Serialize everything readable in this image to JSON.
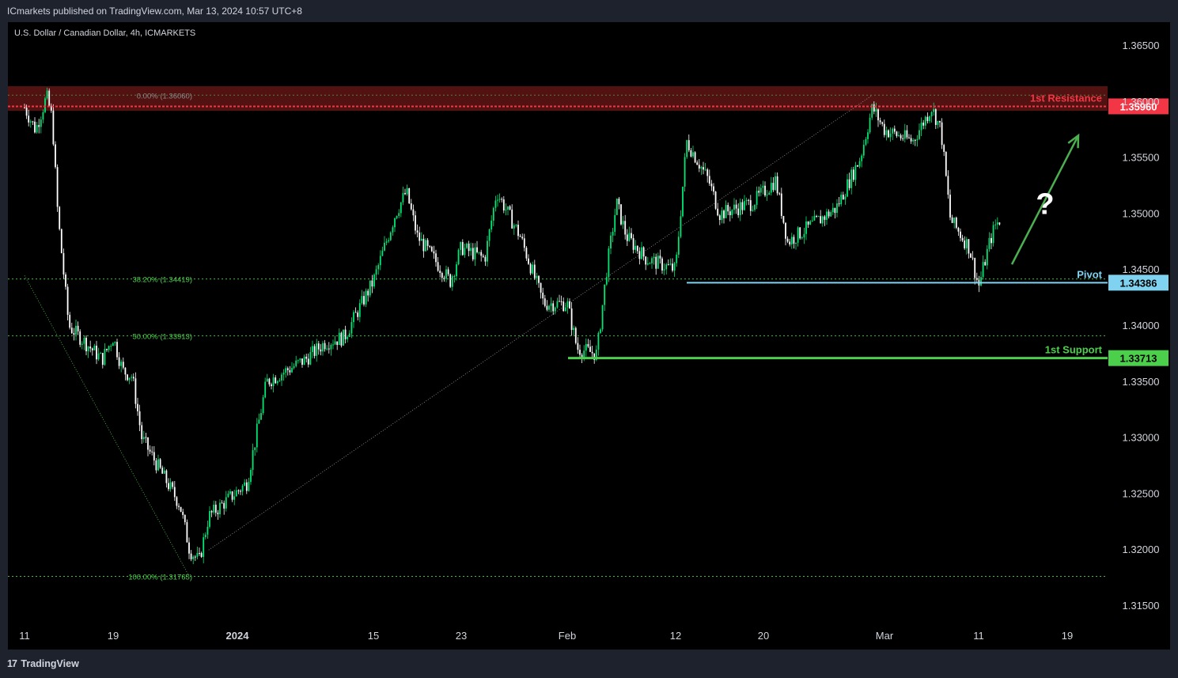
{
  "header": {
    "published_text": "ICmarkets published on TradingView.com, Mar 13, 2024 10:57 UTC+8"
  },
  "footer": {
    "logo_mark": "17",
    "brand": "TradingView"
  },
  "colors": {
    "background": "#000000",
    "frame": "#1e222d",
    "bull_candle": "#00e676",
    "bear_candle": "#ffffff",
    "resistance": "#f23645",
    "pivot": "#7fd3f0",
    "support": "#4cd04c",
    "fib": "#4cd04c"
  },
  "chart_data": {
    "type": "candlestick",
    "symbol_title": "U.S. Dollar / Canadian Dollar, 4h, ICMARKETS",
    "ylim": [
      1.3135,
      1.3665
    ],
    "y_ticks": [
      "1.36500",
      "1.36000",
      "1.35500",
      "1.35000",
      "1.34500",
      "1.34000",
      "1.33500",
      "1.33000",
      "1.32500",
      "1.32000",
      "1.31500"
    ],
    "y_tick_values": [
      1.365,
      1.36,
      1.355,
      1.35,
      1.345,
      1.34,
      1.335,
      1.33,
      1.325,
      1.32,
      1.315
    ],
    "x_ticks": [
      "11",
      "19",
      "2024",
      "15",
      "23",
      "Feb",
      "12",
      "20",
      "Mar",
      "11",
      "19"
    ],
    "x_tick_dates": [
      "2023-12-11",
      "2023-12-19",
      "2024-01-01",
      "2024-01-15",
      "2024-01-23",
      "2024-02-01",
      "2024-02-12",
      "2024-02-20",
      "2024-03-01",
      "2024-03-11",
      "2024-03-19"
    ],
    "grid": false,
    "fibonacci": [
      {
        "label": "0.00% (1.36060)",
        "value": 1.3606
      },
      {
        "label": "38.20% (1.34419)",
        "value": 1.34419
      },
      {
        "label": "50.00% (1.33913)",
        "value": 1.33913
      },
      {
        "label": "100.00% (1.31765)",
        "value": 1.31765
      }
    ],
    "levels": [
      {
        "name": "1st Resistance",
        "value": 1.3596,
        "price_label": "1.35960"
      },
      {
        "name": "Pivot",
        "value": 1.34386,
        "price_label": "1.34386"
      },
      {
        "name": "1st Support",
        "value": 1.33713,
        "price_label": "1.33713"
      }
    ],
    "price_path": [
      [
        "2023-12-11",
        1.3595
      ],
      [
        "2023-12-12",
        1.3575
      ],
      [
        "2023-12-13",
        1.3605
      ],
      [
        "2023-12-13T12:00",
        1.3585
      ],
      [
        "2023-12-14",
        1.35
      ],
      [
        "2023-12-15",
        1.34
      ],
      [
        "2023-12-18",
        1.337
      ],
      [
        "2023-12-19",
        1.339
      ],
      [
        "2023-12-20",
        1.336
      ],
      [
        "2023-12-21",
        1.3355
      ],
      [
        "2023-12-22",
        1.33
      ],
      [
        "2023-12-26",
        1.324
      ],
      [
        "2023-12-27",
        1.32
      ],
      [
        "2023-12-28",
        1.319
      ],
      [
        "2023-12-29",
        1.323
      ],
      [
        "2024-01-02",
        1.326
      ],
      [
        "2024-01-04",
        1.335
      ],
      [
        "2024-01-08",
        1.337
      ],
      [
        "2024-01-10",
        1.3385
      ],
      [
        "2024-01-12",
        1.339
      ],
      [
        "2024-01-15",
        1.344
      ],
      [
        "2024-01-17",
        1.35
      ],
      [
        "2024-01-18",
        1.352
      ],
      [
        "2024-01-19",
        1.348
      ],
      [
        "2024-01-22",
        1.344
      ],
      [
        "2024-01-23",
        1.347
      ],
      [
        "2024-01-25",
        1.346
      ],
      [
        "2024-01-26",
        1.352
      ],
      [
        "2024-01-28",
        1.348
      ],
      [
        "2024-01-30",
        1.342
      ],
      [
        "2024-02-01",
        1.342
      ],
      [
        "2024-02-02",
        1.338
      ],
      [
        "2024-02-04",
        1.3375
      ],
      [
        "2024-02-05",
        1.345
      ],
      [
        "2024-02-06",
        1.351
      ],
      [
        "2024-02-07",
        1.348
      ],
      [
        "2024-02-09",
        1.346
      ],
      [
        "2024-02-12",
        1.345
      ],
      [
        "2024-02-13",
        1.3565
      ],
      [
        "2024-02-15",
        1.353
      ],
      [
        "2024-02-16",
        1.35
      ],
      [
        "2024-02-19",
        1.351
      ],
      [
        "2024-02-21",
        1.353
      ],
      [
        "2024-02-22",
        1.3475
      ],
      [
        "2024-02-26",
        1.3505
      ],
      [
        "2024-02-28",
        1.355
      ],
      [
        "2024-02-29",
        1.3595
      ],
      [
        "2024-03-01",
        1.3575
      ],
      [
        "2024-03-04",
        1.3565
      ],
      [
        "2024-03-06",
        1.3595
      ],
      [
        "2024-03-07",
        1.3575
      ],
      [
        "2024-03-08",
        1.3495
      ],
      [
        "2024-03-10",
        1.347
      ],
      [
        "2024-03-11",
        1.3435
      ],
      [
        "2024-03-12",
        1.3475
      ],
      [
        "2024-03-12T12:00",
        1.349
      ],
      [
        "2024-03-13",
        1.3495
      ]
    ],
    "annotations": [
      {
        "type": "arrow",
        "from": [
          "2024-03-14",
          1.3455
        ],
        "to": [
          "2024-03-20",
          1.357
        ]
      },
      {
        "type": "text",
        "text": "?",
        "at": [
          "2024-03-17",
          1.35
        ]
      },
      {
        "type": "trendline",
        "from": [
          "2023-12-29",
          1.32
        ],
        "to": [
          "2024-02-29",
          1.3606
        ]
      },
      {
        "type": "trendline",
        "from": [
          "2023-12-11",
          1.3445
        ],
        "to": [
          "2023-12-27",
          1.3176
        ]
      }
    ]
  }
}
